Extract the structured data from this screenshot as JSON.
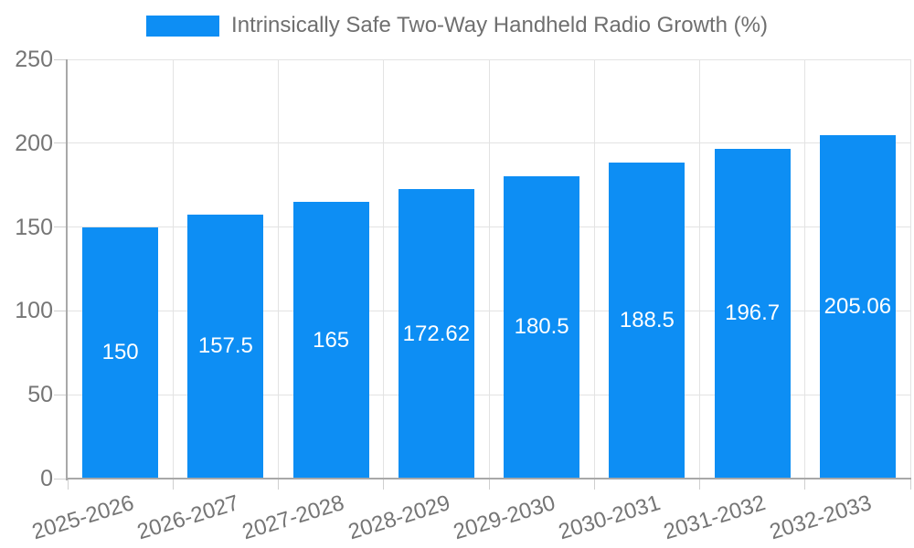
{
  "chart_data": {
    "type": "bar",
    "title": "",
    "legend": "Intrinsically Safe Two-Way Handheld Radio Growth (%)",
    "legend_position": "top",
    "categories": [
      "2025-2026",
      "2026-2027",
      "2027-2028",
      "2028-2029",
      "2029-2030",
      "2030-2031",
      "2031-2032",
      "2032-2033"
    ],
    "series": [
      {
        "name": "Intrinsically Safe Two-Way Handheld Radio Growth (%)",
        "values": [
          150,
          157.5,
          165,
          172.62,
          180.5,
          188.5,
          196.7,
          205.06
        ]
      }
    ],
    "value_labels": [
      "150",
      "157.5",
      "165",
      "172.62",
      "180.5",
      "188.5",
      "196.7",
      "205.06"
    ],
    "xlabel": "",
    "ylabel": "",
    "ylim": [
      0,
      250
    ],
    "yticks": [
      0,
      50,
      100,
      150,
      200,
      250
    ],
    "grid": true,
    "colors": {
      "bar": "#0d8ef4",
      "value_label": "#ffffff",
      "axis_text": "#757575",
      "legend_text": "#6f6f6f",
      "gridline": "#e3e3e3",
      "axis_line": "#a8a8a8",
      "tick": "#cfcfcf",
      "background": "#ffffff"
    }
  }
}
